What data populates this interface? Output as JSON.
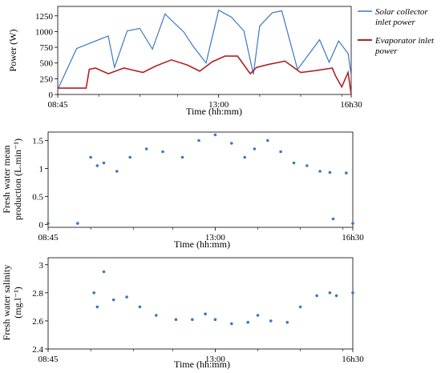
{
  "chart_data": [
    {
      "type": "line",
      "xlabel": "Time (hh:mm)",
      "ylabel": "Power (W)",
      "x_ticks": [
        "08:45",
        "13:00",
        "16h30"
      ],
      "y_ticks": [
        "0",
        "250",
        "500",
        "750",
        "1000",
        "1250"
      ],
      "xlim": [
        "08:45",
        "16:30"
      ],
      "ylim": [
        0,
        1400
      ],
      "legend_position": "right",
      "series": [
        {
          "name": "Solar collector inlet power",
          "color": "#3b78c3",
          "x": [
            "08:45",
            "09:15",
            "10:05",
            "10:15",
            "10:35",
            "10:55",
            "11:15",
            "11:35",
            "12:05",
            "12:20",
            "12:40",
            "13:00",
            "13:20",
            "13:40",
            "13:55",
            "14:05",
            "14:25",
            "14:40",
            "15:05",
            "15:20",
            "15:40",
            "15:55",
            "16:10",
            "16:25",
            "16:30"
          ],
          "values": [
            80,
            730,
            930,
            430,
            1010,
            1050,
            720,
            1280,
            990,
            760,
            500,
            1340,
            1230,
            1010,
            320,
            1090,
            1300,
            1330,
            400,
            600,
            870,
            510,
            850,
            650,
            300
          ]
        },
        {
          "name": "Evaporator inlet power",
          "color": "#b22222",
          "x": [
            "08:45",
            "09:30",
            "09:35",
            "09:45",
            "10:05",
            "10:30",
            "11:00",
            "11:20",
            "11:45",
            "12:10",
            "12:30",
            "12:50",
            "13:10",
            "13:30",
            "13:50",
            "14:00",
            "14:20",
            "14:45",
            "15:10",
            "15:35",
            "16:00",
            "16:05",
            "16:15",
            "16:25",
            "16:30"
          ],
          "values": [
            100,
            100,
            400,
            420,
            330,
            420,
            350,
            450,
            550,
            470,
            370,
            520,
            610,
            610,
            330,
            430,
            480,
            530,
            350,
            380,
            420,
            300,
            120,
            350,
            0
          ]
        }
      ]
    },
    {
      "type": "scatter",
      "xlabel": "Time (hh:mm)",
      "ylabel": "Fresh water mean production (L.min⁻¹)",
      "x_ticks": [
        "08:45",
        "13:00",
        "16h30"
      ],
      "y_ticks": [
        "0",
        "0.5",
        "1",
        "1.5"
      ],
      "xlim": [
        "08:45",
        "16:30"
      ],
      "ylim": [
        -0.05,
        1.65
      ],
      "series": [
        {
          "color": "#3b78c3",
          "x": [
            "08:45",
            "09:30",
            "09:50",
            "10:00",
            "10:10",
            "10:30",
            "10:50",
            "11:15",
            "11:40",
            "12:10",
            "12:35",
            "13:00",
            "13:25",
            "13:45",
            "14:00",
            "14:20",
            "14:40",
            "15:00",
            "15:20",
            "15:40",
            "15:55",
            "16:00",
            "16:20",
            "16:30"
          ],
          "values": [
            0.02,
            0.02,
            1.2,
            1.05,
            1.1,
            0.95,
            1.2,
            1.35,
            1.3,
            1.2,
            1.5,
            1.6,
            1.45,
            1.2,
            1.35,
            1.5,
            1.3,
            1.1,
            1.05,
            0.95,
            0.93,
            0.1,
            0.92,
            0.02
          ]
        }
      ]
    },
    {
      "type": "scatter",
      "xlabel": "Time (hh:mm)",
      "ylabel": "Fresh water salinity (mg.l⁻¹)",
      "x_ticks": [
        "08:45",
        "13:00",
        "16h30"
      ],
      "y_ticks": [
        "2.4",
        "2.6",
        "2.8",
        "3"
      ],
      "xlim": [
        "08:45",
        "16:30"
      ],
      "ylim": [
        2.4,
        3.05
      ],
      "series": [
        {
          "color": "#3b78c3",
          "x": [
            "09:55",
            "10:00",
            "10:10",
            "10:25",
            "10:45",
            "11:05",
            "11:30",
            "12:00",
            "12:25",
            "12:45",
            "13:00",
            "13:25",
            "13:50",
            "14:05",
            "14:25",
            "14:50",
            "15:10",
            "15:35",
            "15:55",
            "16:05",
            "16:30"
          ],
          "values": [
            2.8,
            2.7,
            2.95,
            2.75,
            2.77,
            2.7,
            2.64,
            2.61,
            2.61,
            2.65,
            2.61,
            2.58,
            2.59,
            2.64,
            2.6,
            2.59,
            2.7,
            2.78,
            2.8,
            2.78,
            2.8
          ]
        }
      ]
    }
  ]
}
